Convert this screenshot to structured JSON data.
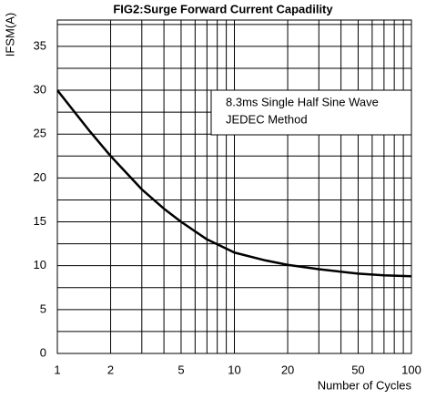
{
  "chart_data": {
    "type": "line",
    "title": "FIG2:Surge Forward Current Capadility",
    "ylabel": "IFSM(A)",
    "xlabel": "Number of Cycles",
    "annotation": [
      "8.3ms Single Half Sine Wave",
      "JEDEC Method"
    ],
    "xscale": "log",
    "grid": true,
    "x": [
      1,
      1.5,
      2,
      3,
      4,
      5,
      7,
      10,
      15,
      20,
      30,
      50,
      70,
      100
    ],
    "series": [
      {
        "name": "IFSM",
        "color": "#000000",
        "values": [
          30,
          25.5,
          22.5,
          18.7,
          16.5,
          15,
          13,
          11.5,
          10.6,
          10.1,
          9.6,
          9.1,
          8.9,
          8.8
        ]
      }
    ],
    "xlim": [
      1,
      100
    ],
    "xticks": [
      1,
      2,
      5,
      10,
      20,
      50,
      100
    ],
    "xminor": [
      3,
      4,
      6,
      7,
      8,
      9,
      30,
      40,
      60,
      70,
      80,
      90
    ],
    "ylim": [
      0,
      38
    ],
    "yticks": [
      0,
      5,
      10,
      15,
      20,
      25,
      30,
      35
    ],
    "yminor": [
      2.5,
      7.5,
      12.5,
      17.5,
      22.5,
      27.5,
      32.5,
      37.5
    ]
  }
}
